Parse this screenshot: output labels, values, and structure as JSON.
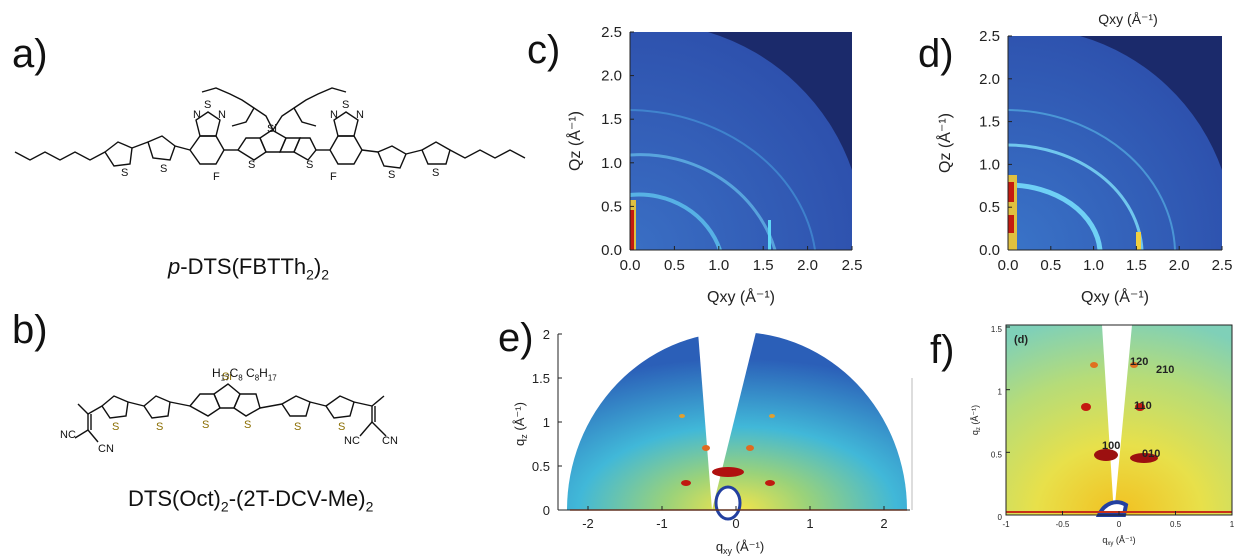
{
  "panel_labels": {
    "a": "a)",
    "b": "b)",
    "c": "c)",
    "d": "d)",
    "e": "e)",
    "f": "f)"
  },
  "molecule_a": {
    "name_prefix": "p",
    "name_main": "-DTS(FBTTh",
    "name_sub1": "2",
    "name_close": ")",
    "name_sub2": "2",
    "atoms": {
      "si": "Si",
      "s": "S",
      "n": "N",
      "f": "F"
    }
  },
  "molecule_b": {
    "name_main": "DTS(Oct)",
    "name_sub1": "2",
    "name_mid": "-(2T-DCV-Me)",
    "name_sub2": "2",
    "substituent_left": "H",
    "substituent_left_sub": "17",
    "substituent_left_c": "C",
    "substituent_left_c_sub": "8",
    "substituent_right": "C",
    "substituent_right_sub": "8",
    "substituent_right_h": "H",
    "substituent_right_h_sub": "17",
    "atoms": {
      "si": "Si",
      "s": "S",
      "nc": "NC",
      "cn": "CN"
    }
  },
  "panel_c": {
    "xlabel": "Qxy (Å⁻¹)",
    "ylabel": "Qz (Å⁻¹)",
    "xticks": [
      "0.0",
      "0.5",
      "1.0",
      "1.5",
      "2.0",
      "2.5"
    ],
    "yticks": [
      "0.0",
      "0.5",
      "1.0",
      "1.5",
      "2.0",
      "2.5"
    ]
  },
  "panel_d": {
    "top_label": "Qxy (Å⁻¹)",
    "xlabel": "Qxy (Å⁻¹)",
    "ylabel": "Qz (Å⁻¹)",
    "xticks": [
      "0.0",
      "0.5",
      "1.0",
      "1.5",
      "2.0",
      "2.5"
    ],
    "yticks": [
      "0.0",
      "0.5",
      "1.0",
      "1.5",
      "2.0",
      "2.5"
    ]
  },
  "panel_e": {
    "xlabel": "q",
    "xlabel_sub": "xy",
    "xlabel_unit": " (Å⁻¹)",
    "ylabel": "q",
    "ylabel_sub": "z",
    "ylabel_unit": " (Å⁻¹)",
    "xticks": [
      "-2",
      "-1",
      "0",
      "1",
      "2"
    ],
    "yticks": [
      "0",
      "0.5",
      "1",
      "1.5",
      "2"
    ]
  },
  "panel_f": {
    "inner_label": "(d)",
    "xlabel": "q",
    "xlabel_sub": "xy",
    "xlabel_unit": " (Å⁻¹)",
    "ylabel": "q",
    "ylabel_sub": "z",
    "ylabel_unit": " (Å⁻¹)",
    "xticks": [
      "-1",
      "-0.5",
      "0",
      "0.5",
      "1"
    ],
    "yticks": [
      "0",
      "0.5",
      "1",
      "1.5"
    ],
    "peaks": [
      "120",
      "210",
      "110",
      "100",
      "010"
    ]
  }
}
